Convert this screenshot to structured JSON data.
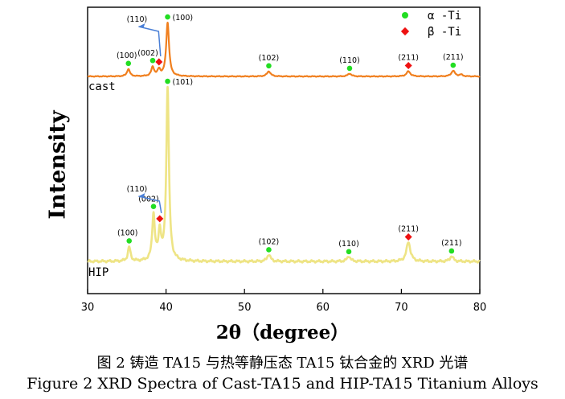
{
  "chart_data": {
    "type": "line",
    "title": "",
    "xlabel": "2θ（degree）",
    "ylabel": "Intensity",
    "xlim": [
      30,
      80
    ],
    "x_ticks": [
      "30",
      "40",
      "50",
      "60",
      "70",
      "80"
    ],
    "grid": false,
    "legend": {
      "placement": "top-right",
      "entries": [
        {
          "label": "α -Ti",
          "marker": "circle",
          "color": "#22dd22"
        },
        {
          "label": "β -Ti",
          "marker": "diamond",
          "color": "#ee1111"
        }
      ]
    },
    "series": [
      {
        "name": "cast",
        "color": "#f07f1e",
        "peaks": [
          {
            "x": 35.2,
            "height": 0.13,
            "width": 0.22,
            "phase": "alpha",
            "label": "(100)"
          },
          {
            "x": 38.3,
            "height": 0.16,
            "width": 0.22,
            "phase": "alpha",
            "label": "(002)"
          },
          {
            "x": 39.1,
            "height": 0.11,
            "width": 0.22,
            "phase": "beta",
            "label": ""
          },
          {
            "x": 40.2,
            "height": 0.95,
            "width": 0.22,
            "phase": "alpha",
            "label": "(100)"
          },
          {
            "x": 53.1,
            "height": 0.09,
            "width": 0.28,
            "phase": "alpha",
            "label": "(102)"
          },
          {
            "x": 63.4,
            "height": 0.05,
            "width": 0.28,
            "phase": "alpha",
            "label": "(110)"
          },
          {
            "x": 70.9,
            "height": 0.09,
            "width": 0.3,
            "phase": "beta",
            "label": "(211)"
          },
          {
            "x": 76.6,
            "height": 0.1,
            "width": 0.28,
            "phase": "alpha",
            "label": "(211)"
          },
          {
            "x": 77.6,
            "height": 0.03,
            "width": 0.25,
            "phase": "",
            "label": ""
          }
        ],
        "arrow_label": "(110)",
        "curve_label": "cast"
      },
      {
        "name": "HIP",
        "color": "#eee485",
        "peaks": [
          {
            "x": 35.3,
            "height": 0.08,
            "width": 0.2,
            "phase": "alpha",
            "label": "(100)"
          },
          {
            "x": 38.4,
            "height": 0.26,
            "width": 0.2,
            "phase": "alpha",
            "label": "(002)"
          },
          {
            "x": 39.2,
            "height": 0.16,
            "width": 0.2,
            "phase": "beta",
            "label": ""
          },
          {
            "x": 40.2,
            "height": 0.98,
            "width": 0.2,
            "phase": "alpha",
            "label": "(101)"
          },
          {
            "x": 53.1,
            "height": 0.04,
            "width": 0.25,
            "phase": "alpha",
            "label": "(102)"
          },
          {
            "x": 63.3,
            "height": 0.03,
            "width": 0.25,
            "phase": "alpha",
            "label": "(110)"
          },
          {
            "x": 70.9,
            "height": 0.11,
            "width": 0.3,
            "phase": "beta",
            "label": "(211)"
          },
          {
            "x": 76.4,
            "height": 0.03,
            "width": 0.25,
            "phase": "alpha",
            "label": "(211)"
          }
        ],
        "arrow_label": "(110)",
        "curve_label": "HIP"
      }
    ]
  },
  "caption": {
    "chinese": "图 2 铸造 TA15 与热等静压态 TA15 钛合金的 XRD 光谱",
    "english": "Figure 2 XRD Spectra of Cast-TA15 and HIP-TA15 Titanium Alloys"
  }
}
